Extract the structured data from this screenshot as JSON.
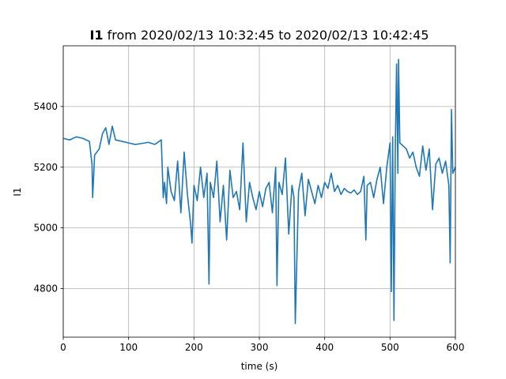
{
  "title": {
    "series_name": "I1",
    "rest": " from 2020/02/13 10:32:45 to 2020/02/13 10:42:45"
  },
  "colors": {
    "line": "#1f77b4",
    "grid": "#b0b0b0",
    "axes": "#000000",
    "background": "#ffffff"
  },
  "chart_data": {
    "type": "line",
    "title": "I1 from 2020/02/13 10:32:45 to 2020/02/13 10:42:45",
    "xlabel": "time (s)",
    "ylabel": "I1",
    "xlim": [
      0,
      600
    ],
    "ylim": [
      4640,
      5600
    ],
    "xticks": [
      0,
      100,
      200,
      300,
      400,
      500,
      600
    ],
    "yticks": [
      4800,
      5000,
      5200,
      5400
    ],
    "grid": true,
    "legend": "none",
    "series": [
      {
        "x": [
          0,
          10,
          20,
          30,
          40,
          44,
          45,
          48,
          55,
          60,
          65,
          70,
          75,
          80,
          90,
          100,
          110,
          120,
          130,
          140,
          150,
          153,
          155,
          158,
          160,
          165,
          170,
          175,
          180,
          185,
          190,
          195,
          197,
          200,
          205,
          210,
          215,
          220,
          223,
          225,
          230,
          235,
          240,
          245,
          250,
          255,
          260,
          265,
          270,
          275,
          280,
          285,
          290,
          295,
          300,
          305,
          310,
          315,
          320,
          325,
          327,
          330,
          335,
          340,
          345,
          350,
          353,
          355,
          360,
          365,
          370,
          375,
          380,
          385,
          390,
          395,
          400,
          405,
          410,
          415,
          420,
          425,
          430,
          435,
          440,
          445,
          450,
          455,
          460,
          463,
          465,
          470,
          475,
          480,
          485,
          490,
          495,
          500,
          502,
          504,
          506,
          508,
          510,
          512,
          513,
          515,
          520,
          525,
          530,
          535,
          540,
          545,
          550,
          555,
          560,
          565,
          570,
          575,
          580,
          585,
          590,
          592,
          594,
          596,
          600
        ],
        "y": [
          5295,
          5290,
          5300,
          5295,
          5285,
          5210,
          5100,
          5240,
          5260,
          5310,
          5330,
          5275,
          5335,
          5290,
          5285,
          5280,
          5275,
          5278,
          5282,
          5275,
          5290,
          5100,
          5150,
          5080,
          5200,
          5120,
          5090,
          5220,
          5050,
          5250,
          5110,
          5010,
          4950,
          5140,
          5090,
          5200,
          5100,
          5180,
          4815,
          5150,
          5100,
          5220,
          5020,
          5140,
          4960,
          5190,
          5100,
          5120,
          5060,
          5280,
          5020,
          5150,
          5100,
          5060,
          5120,
          5070,
          5130,
          5150,
          5050,
          5200,
          4810,
          5150,
          5110,
          5230,
          4980,
          5140,
          5100,
          4685,
          5120,
          5180,
          5040,
          5160,
          5120,
          5080,
          5140,
          5100,
          5150,
          5130,
          5180,
          5120,
          5140,
          5110,
          5130,
          5120,
          5115,
          5125,
          5110,
          5120,
          5170,
          4960,
          5140,
          5150,
          5100,
          5160,
          5200,
          5080,
          5200,
          5280,
          4790,
          5300,
          4695,
          5250,
          5540,
          5180,
          5555,
          5280,
          5270,
          5260,
          5230,
          5250,
          5200,
          5170,
          5270,
          5190,
          5260,
          5060,
          5210,
          5230,
          5180,
          5220,
          5140,
          4885,
          5390,
          5180,
          5200
        ]
      }
    ]
  }
}
